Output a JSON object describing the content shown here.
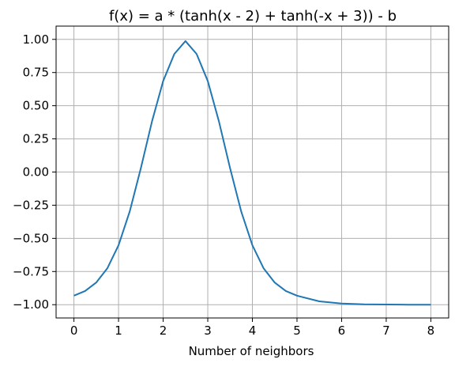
{
  "chart_data": {
    "type": "line",
    "title": "f(x) = a * (tanh(x - 2) + tanh(-x + 3)) - b",
    "xlabel": "Number of neighbors",
    "ylabel": "",
    "xlim": [
      -0.4,
      8.4
    ],
    "ylim": [
      -1.1,
      1.1
    ],
    "xticks": [
      0,
      1,
      2,
      3,
      4,
      5,
      6,
      7,
      8
    ],
    "yticks": [
      -1.0,
      -0.75,
      -0.5,
      -0.25,
      0.0,
      0.25,
      0.5,
      0.75,
      1.0
    ],
    "ytick_labels": [
      "−1.00",
      "−0.75",
      "−0.50",
      "−0.25",
      "0.00",
      "0.25",
      "0.50",
      "0.75",
      "1.00"
    ],
    "grid": true,
    "series": [
      {
        "color": "#1f77b4",
        "x": [
          0,
          0.25,
          0.5,
          0.75,
          1,
          1.25,
          1.5,
          1.75,
          2,
          2.25,
          2.5,
          2.75,
          3,
          3.25,
          3.5,
          3.75,
          4,
          4.25,
          4.5,
          4.75,
          5,
          5.5,
          6,
          6.5,
          7,
          7.5,
          8
        ],
        "y": [
          -0.932,
          -0.897,
          -0.833,
          -0.725,
          -0.552,
          -0.298,
          0.029,
          0.382,
          0.686,
          0.89,
          0.987,
          0.89,
          0.686,
          0.382,
          0.029,
          -0.298,
          -0.552,
          -0.725,
          -0.833,
          -0.897,
          -0.932,
          -0.975,
          -0.991,
          -0.997,
          -0.999,
          -1.0,
          -1.0
        ]
      }
    ]
  }
}
